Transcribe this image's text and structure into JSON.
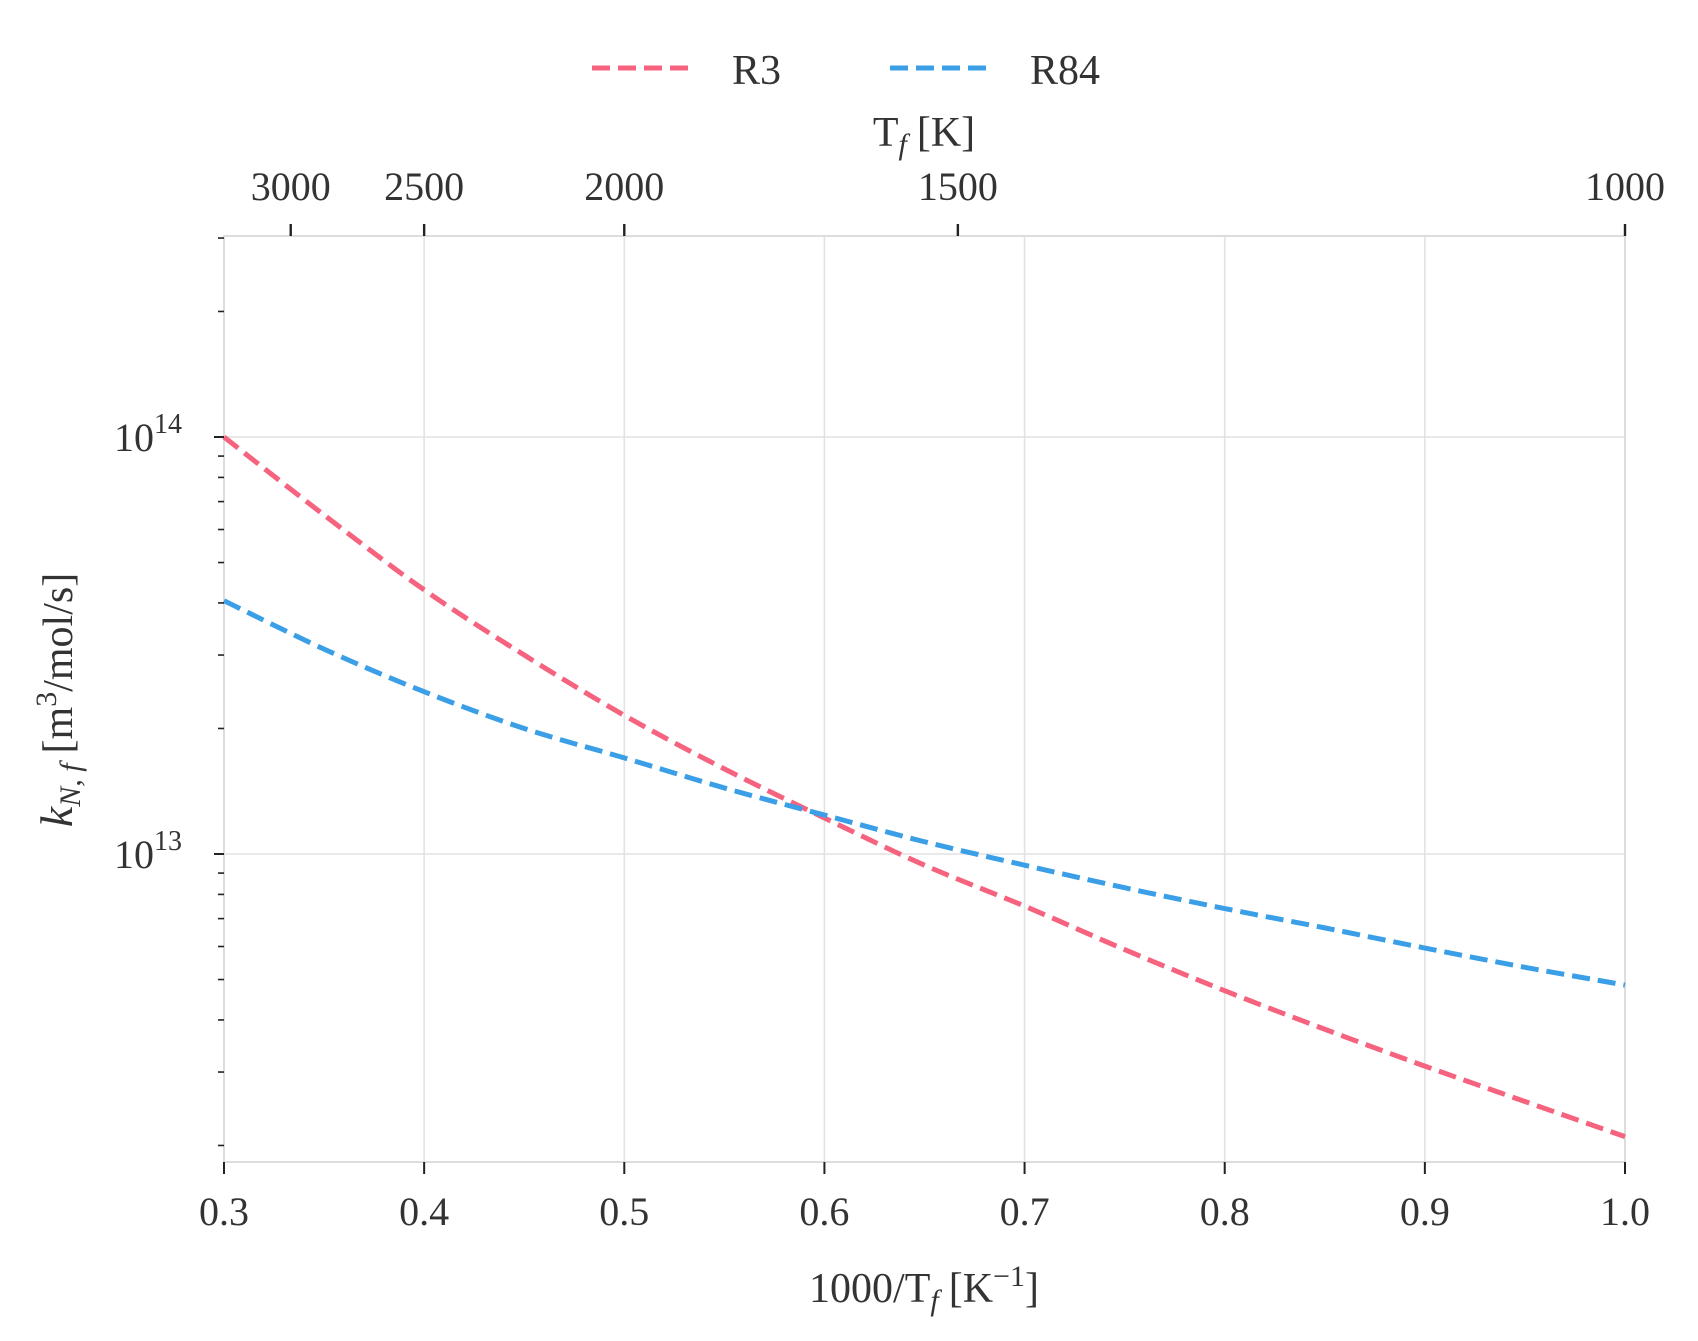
{
  "chart_data": {
    "type": "line",
    "title": "",
    "xlabel": {
      "main": "1000/T",
      "sub": "f",
      "unit_open": "[K",
      "unit_sup": "−1",
      "unit_close": "]"
    },
    "ylabel": {
      "main": "k",
      "sub": "N, f",
      "unit_open": "[m",
      "unit_sup": "3",
      "unit_close": "/mol/s]"
    },
    "top_xlabel": {
      "main": "T",
      "sub": "f",
      "unit": "[K]"
    },
    "xlim": [
      0.3,
      1.0
    ],
    "ylim": [
      2000000000000.0,
      320000000000000.0
    ],
    "yscale": "log",
    "grid": true,
    "legend_position": "top-center",
    "x_ticks": [
      0.3,
      0.4,
      0.5,
      0.6,
      0.7,
      0.8,
      0.9,
      1.0
    ],
    "x_tick_labels": [
      "0.3",
      "0.4",
      "0.5",
      "0.6",
      "0.7",
      "0.8",
      "0.9",
      "1.0"
    ],
    "y_major_ticks": [
      {
        "value": 10000000000000.0,
        "base": "10",
        "exp": "13"
      },
      {
        "value": 100000000000000.0,
        "base": "10",
        "exp": "14"
      }
    ],
    "top_x_ticks": [
      {
        "temperature": 3000,
        "label": "3000"
      },
      {
        "temperature": 2500,
        "label": "2500"
      },
      {
        "temperature": 2000,
        "label": "2000"
      },
      {
        "temperature": 1500,
        "label": "1500"
      },
      {
        "temperature": 1000,
        "label": "1000"
      }
    ],
    "series": [
      {
        "name": "R3",
        "color": "#f5637f",
        "style": "dashed",
        "points": [
          [
            0.3,
            100000000000000.0
          ],
          [
            0.35,
            65000000000000.0
          ],
          [
            0.4,
            43000000000000.0
          ],
          [
            0.45,
            30000000000000.0
          ],
          [
            0.5,
            21500000000000.0
          ],
          [
            0.55,
            16000000000000.0
          ],
          [
            0.6,
            12200000000000.0
          ],
          [
            0.65,
            9400000000000.0
          ],
          [
            0.7,
            7500000000000.0
          ],
          [
            0.75,
            5900000000000.0
          ],
          [
            0.8,
            4700000000000.0
          ],
          [
            0.85,
            3800000000000.0
          ],
          [
            0.9,
            3100000000000.0
          ],
          [
            0.95,
            2550000000000.0
          ],
          [
            1.0,
            2100000000000.0
          ]
        ]
      },
      {
        "name": "R84",
        "color": "#3a9fe6",
        "style": "dashed",
        "points": [
          [
            0.3,
            40500000000000.0
          ],
          [
            0.35,
            31000000000000.0
          ],
          [
            0.4,
            24500000000000.0
          ],
          [
            0.45,
            20000000000000.0
          ],
          [
            0.5,
            17000000000000.0
          ],
          [
            0.55,
            14400000000000.0
          ],
          [
            0.6,
            12400000000000.0
          ],
          [
            0.65,
            10700000000000.0
          ],
          [
            0.7,
            9400000000000.0
          ],
          [
            0.75,
            8300000000000.0
          ],
          [
            0.8,
            7400000000000.0
          ],
          [
            0.85,
            6650000000000.0
          ],
          [
            0.9,
            5950000000000.0
          ],
          [
            0.95,
            5350000000000.0
          ],
          [
            1.0,
            4850000000000.0
          ]
        ]
      }
    ]
  }
}
